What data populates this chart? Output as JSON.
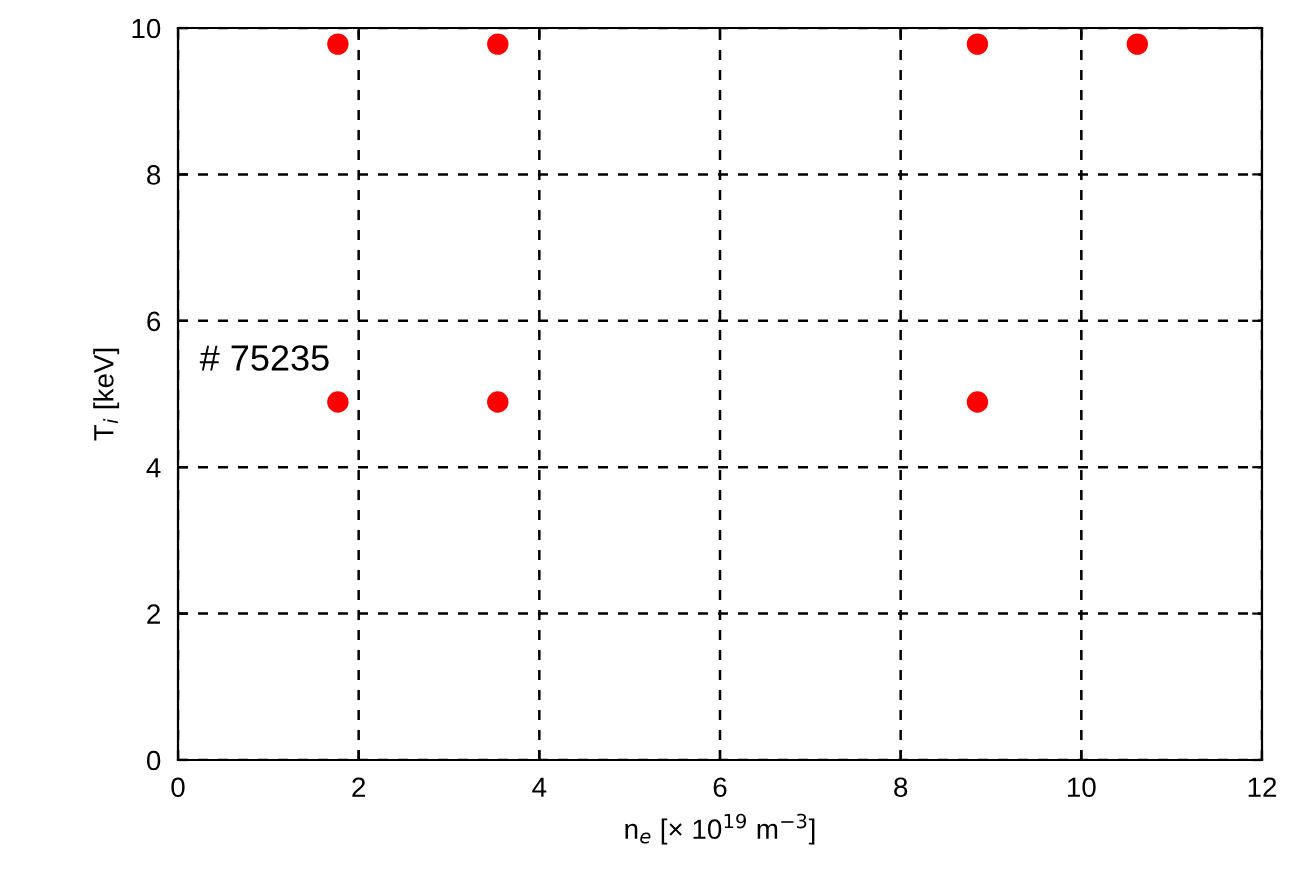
{
  "chart_data": {
    "type": "scatter",
    "xlabel": "n$_{e}$ [× 10$^{19}$ m$^{−3}$]",
    "ylabel": "T$_{i}$ [keV]",
    "annotations": [
      "# 75235"
    ],
    "x": [
      1.77,
      3.54,
      8.85,
      10.62,
      1.77,
      3.54,
      8.85
    ],
    "series": [
      {
        "color": "#ff0000",
        "values": [
          9.78,
          9.78,
          9.78,
          9.78,
          4.89,
          4.89,
          4.89
        ]
      }
    ],
    "marker": "circle",
    "xlim": [
      0,
      12
    ],
    "ylim": [
      0,
      10
    ],
    "xticks": [
      0,
      2,
      4,
      6,
      8,
      10,
      12
    ],
    "yticks": [
      0,
      2,
      4,
      6,
      8,
      10
    ],
    "grid": true,
    "legend": false
  }
}
